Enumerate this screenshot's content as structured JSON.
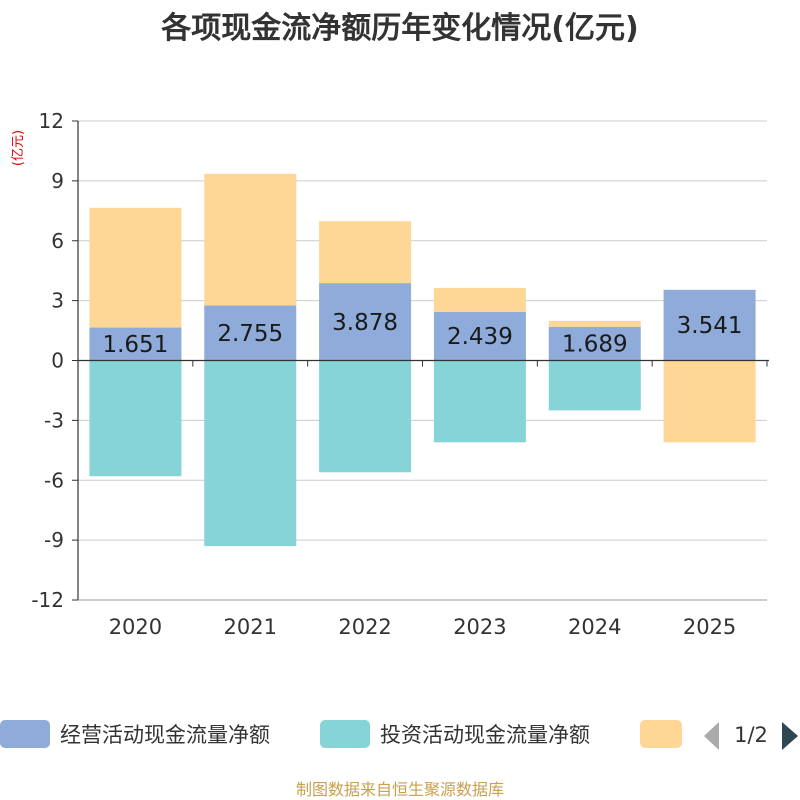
{
  "chart_data": {
    "type": "bar",
    "stacked": true,
    "title": "各项现金流净额历年变化情况(亿元)",
    "ylabel": "(亿元)",
    "ylim": [
      -12,
      12
    ],
    "yticks": [
      12,
      9,
      6,
      3,
      0,
      -3,
      -6,
      -9,
      -12
    ],
    "categories": [
      "2020",
      "2021",
      "2022",
      "2023",
      "2024",
      "2025"
    ],
    "series": [
      {
        "name": "经营活动现金流量净额",
        "color": "#8eabd9",
        "values": [
          1.651,
          2.755,
          3.878,
          2.439,
          1.689,
          3.541
        ],
        "labels": [
          "1.651",
          "2.755",
          "3.878",
          "2.439",
          "1.689",
          "3.541"
        ]
      },
      {
        "name": "投资活动现金流量净额",
        "color": "#86d4d8",
        "values": [
          -5.8,
          -9.3,
          -5.6,
          -4.1,
          -2.5,
          0
        ]
      },
      {
        "name": "",
        "color": "#fed797",
        "values": [
          6.0,
          6.6,
          3.1,
          1.2,
          0.3,
          -4.1
        ]
      }
    ],
    "legend_page": "1/2",
    "legend_position": "bottom"
  },
  "source": "制图数据来自恒生聚源数据库"
}
